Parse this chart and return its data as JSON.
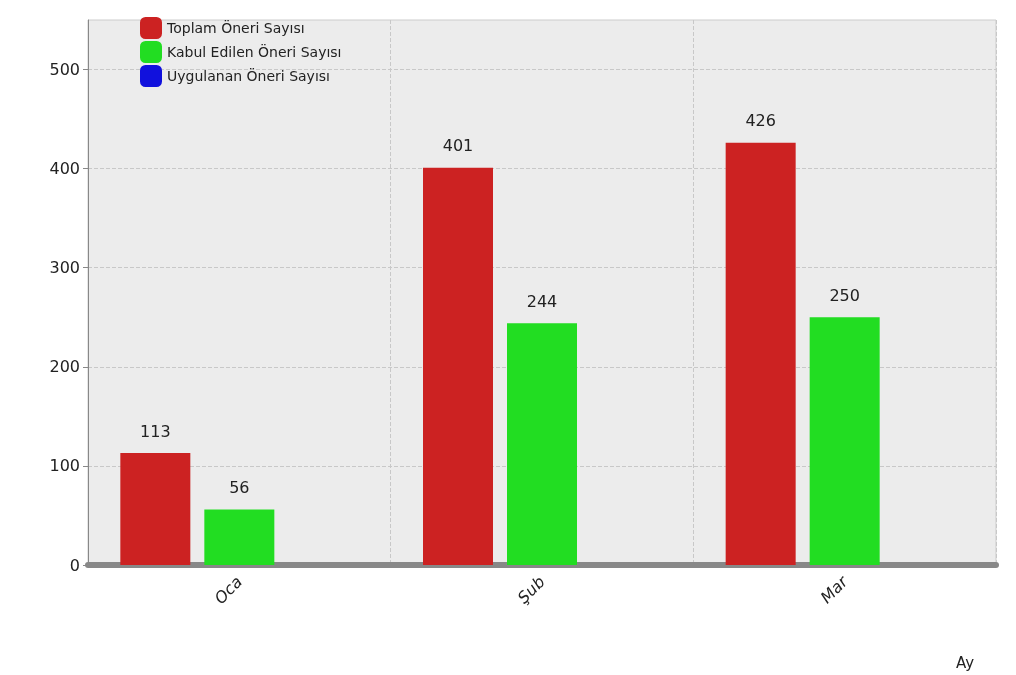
{
  "chart_data": {
    "type": "bar",
    "xlabel": "Ay",
    "categories": [
      "Oca",
      "Şub",
      "Mar"
    ],
    "series": [
      {
        "name": "Toplam Öneri Sayısı",
        "color": "#cc2222",
        "values": [
          113,
          401,
          426
        ],
        "value_labels": [
          "113",
          "401",
          "426"
        ]
      },
      {
        "name": "Kabul Edilen Öneri Sayısı",
        "color": "#22dd22",
        "values": [
          56,
          244,
          250
        ],
        "value_labels": [
          "56",
          "244",
          "250"
        ]
      },
      {
        "name": "Uygulanan Öneri Sayısı",
        "color": "#1111dd",
        "values": [
          0,
          0,
          0
        ],
        "value_labels": [
          null,
          null,
          null
        ]
      }
    ],
    "ylim": [
      0,
      550
    ],
    "yticks": [
      0,
      100,
      200,
      300,
      400,
      500
    ],
    "grid": true,
    "legend": "top left"
  }
}
